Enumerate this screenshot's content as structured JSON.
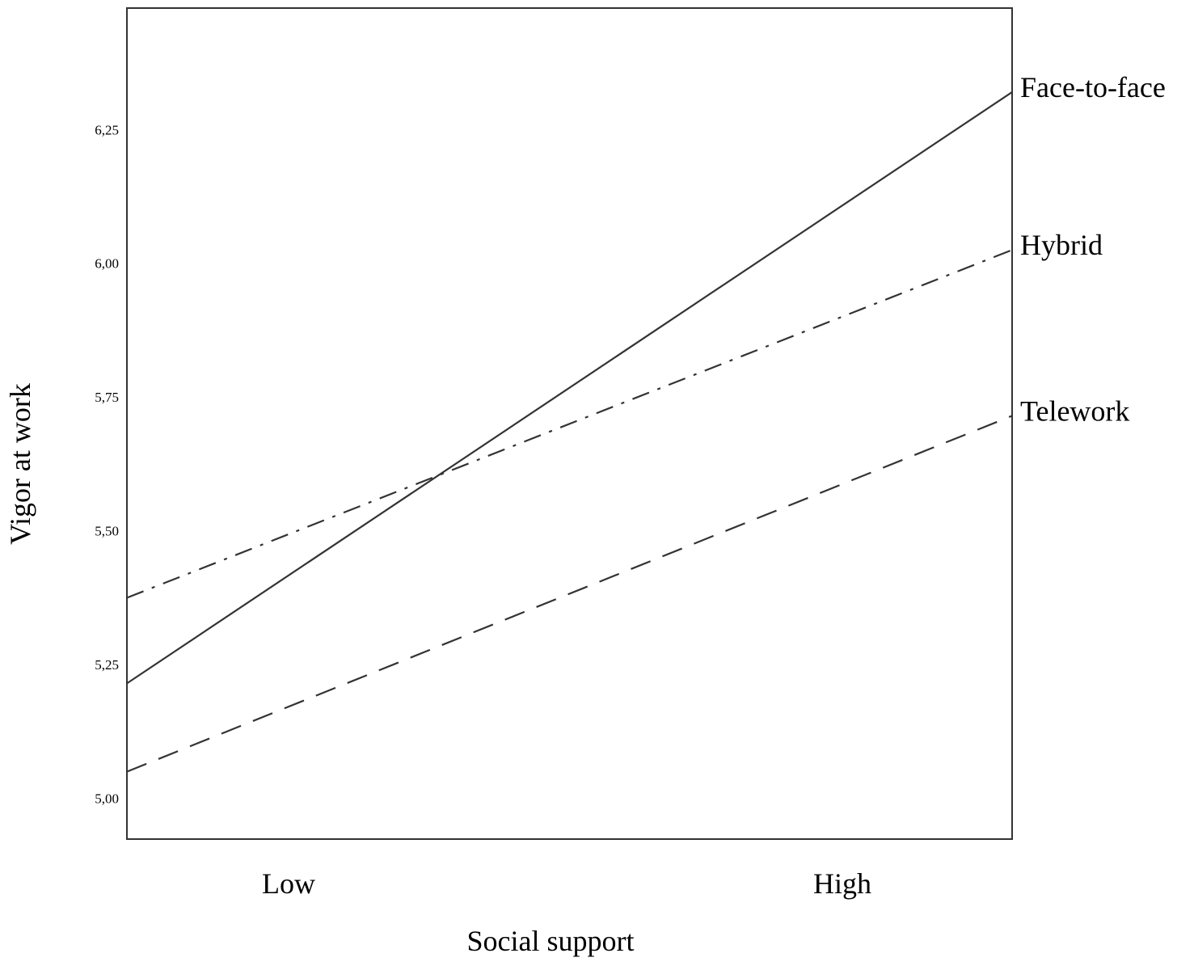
{
  "chart_data": {
    "type": "line",
    "title": "",
    "xlabel": "Social support",
    "ylabel": "Vigor at work",
    "categories": [
      "Low",
      "High"
    ],
    "yticks": [
      {
        "value": 5.0,
        "label": "5,00"
      },
      {
        "value": 5.25,
        "label": "5,25"
      },
      {
        "value": 5.5,
        "label": "5,50"
      },
      {
        "value": 5.75,
        "label": "5,75"
      },
      {
        "value": 6.0,
        "label": "6,00"
      },
      {
        "value": 6.25,
        "label": "6,25"
      }
    ],
    "ylim": [
      4.924,
      6.477
    ],
    "grid": false,
    "legend": "direct labels at right end of lines",
    "series": [
      {
        "name": "Face-to-face",
        "values": [
          5.215,
          6.32
        ],
        "line_style": "solid",
        "color": "#333333"
      },
      {
        "name": "Hybrid",
        "values": [
          5.375,
          6.025
        ],
        "line_style": "dash-dot",
        "color": "#333333"
      },
      {
        "name": "Telework",
        "values": [
          5.05,
          5.715
        ],
        "line_style": "dashed",
        "color": "#333333"
      }
    ]
  }
}
